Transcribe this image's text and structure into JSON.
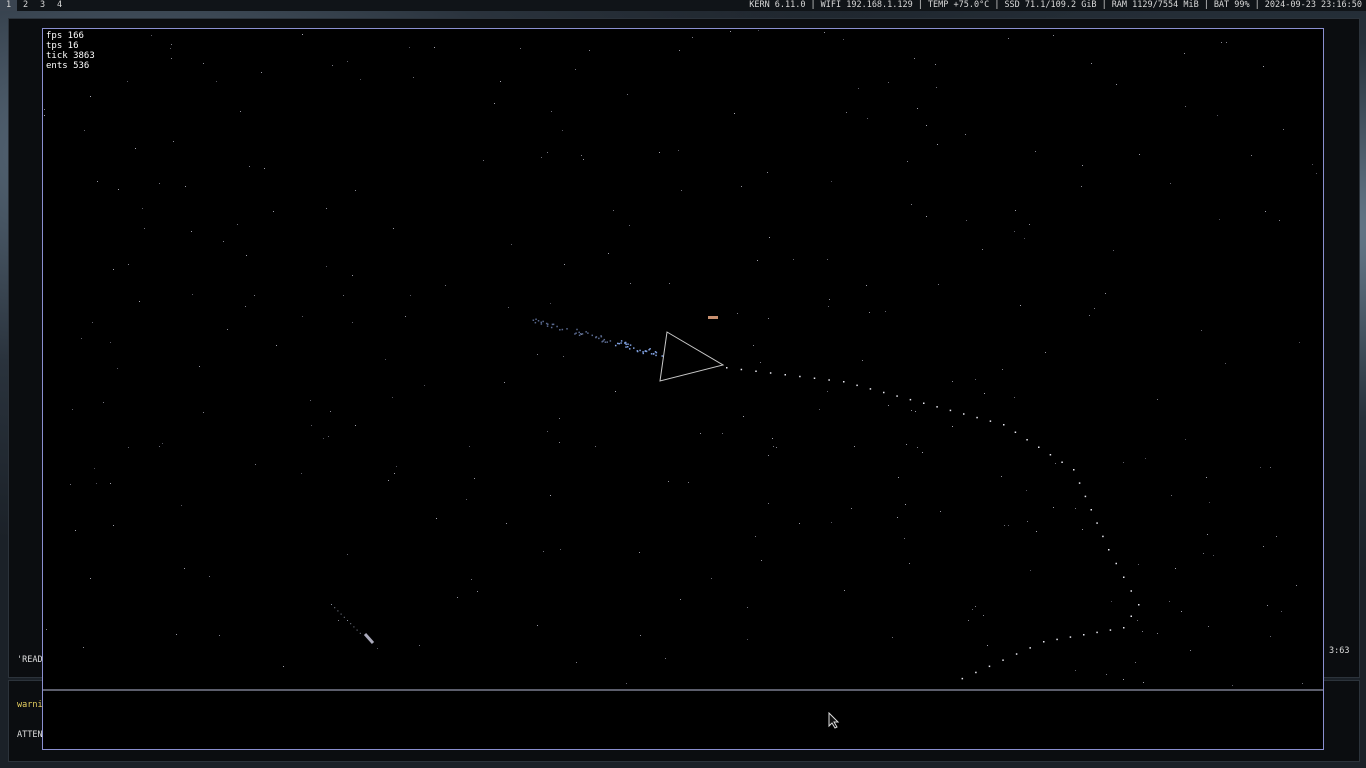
{
  "topbar": {
    "workspaces": [
      "1",
      "2",
      "3",
      "4"
    ],
    "separator": "|",
    "status": [
      "KERN 6.11.0",
      "WIFI 192.168.1.129",
      "TEMP +75.0°C",
      "SSD 71.1/109.2 GiB",
      "RAM 1129/7554 MiB",
      "BAT 99%",
      "2024-09-23 23:16:50"
    ]
  },
  "game": {
    "stats": [
      "fps 166",
      "tps 16",
      "tick 3863",
      "ents 536"
    ]
  },
  "background": {
    "terminal_texts": [
      "'READ",
      "warni",
      "ATTEN",
      "3:63"
    ]
  }
}
